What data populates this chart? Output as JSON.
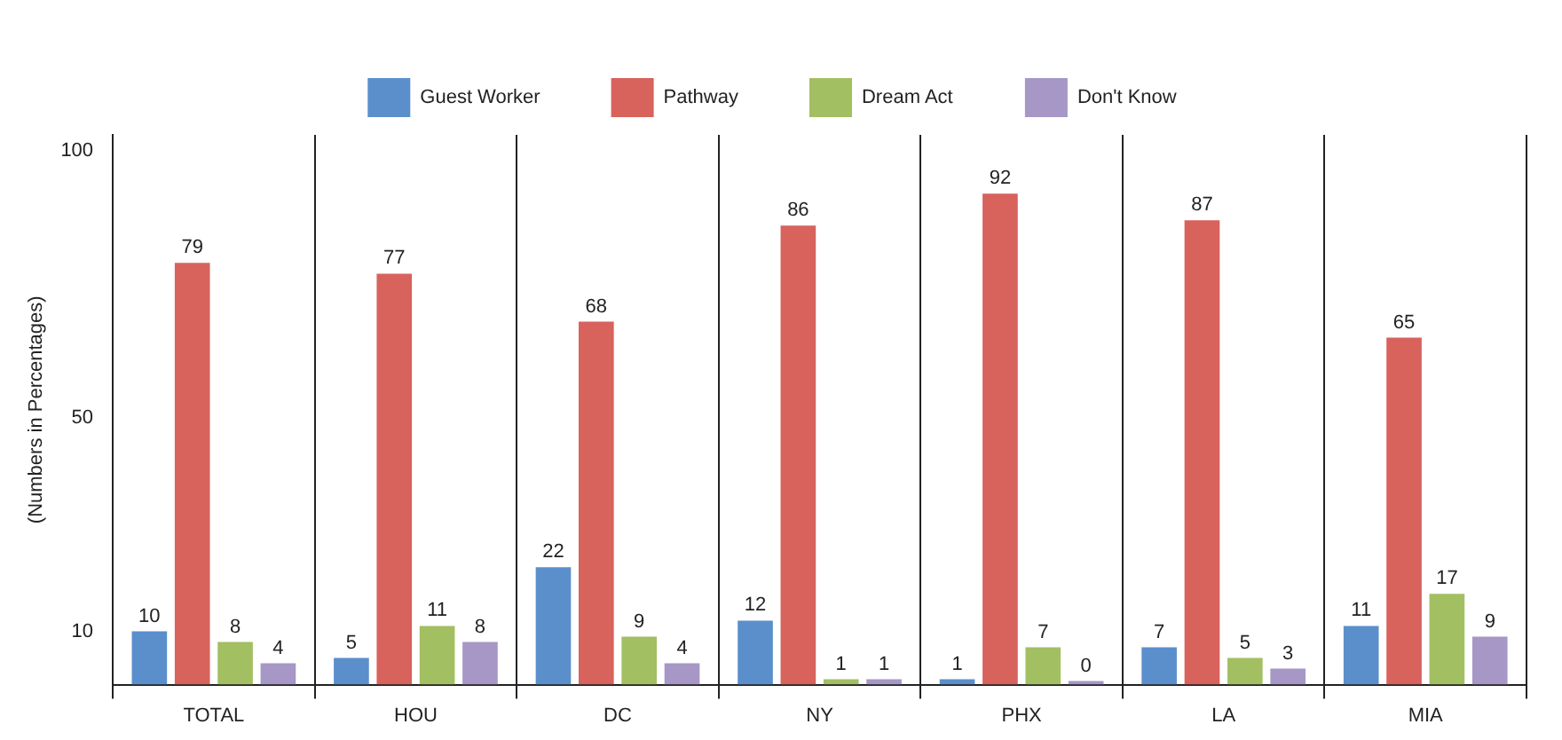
{
  "chart_data": {
    "type": "bar",
    "ylabel": "(Numbers in Percentages)",
    "categories": [
      "TOTAL",
      "HOU",
      "DC",
      "NY",
      "PHX",
      "LA",
      "MIA"
    ],
    "series": [
      {
        "name": "Guest Worker",
        "color": "#5b8fcc",
        "values": [
          10,
          5,
          22,
          12,
          1,
          7,
          11
        ]
      },
      {
        "name": "Pathway",
        "color": "#d8625c",
        "values": [
          79,
          77,
          68,
          86,
          92,
          87,
          65
        ]
      },
      {
        "name": "Dream Act",
        "color": "#a2bf62",
        "values": [
          8,
          11,
          9,
          1,
          7,
          5,
          17
        ]
      },
      {
        "name": "Don't Know",
        "color": "#a697c6",
        "values": [
          4,
          8,
          4,
          1,
          0,
          3,
          9
        ]
      }
    ],
    "ylim": [
      0,
      103
    ],
    "yticks": [
      10,
      50,
      100
    ],
    "grid": "x",
    "legend": "top",
    "data_labels": true
  }
}
